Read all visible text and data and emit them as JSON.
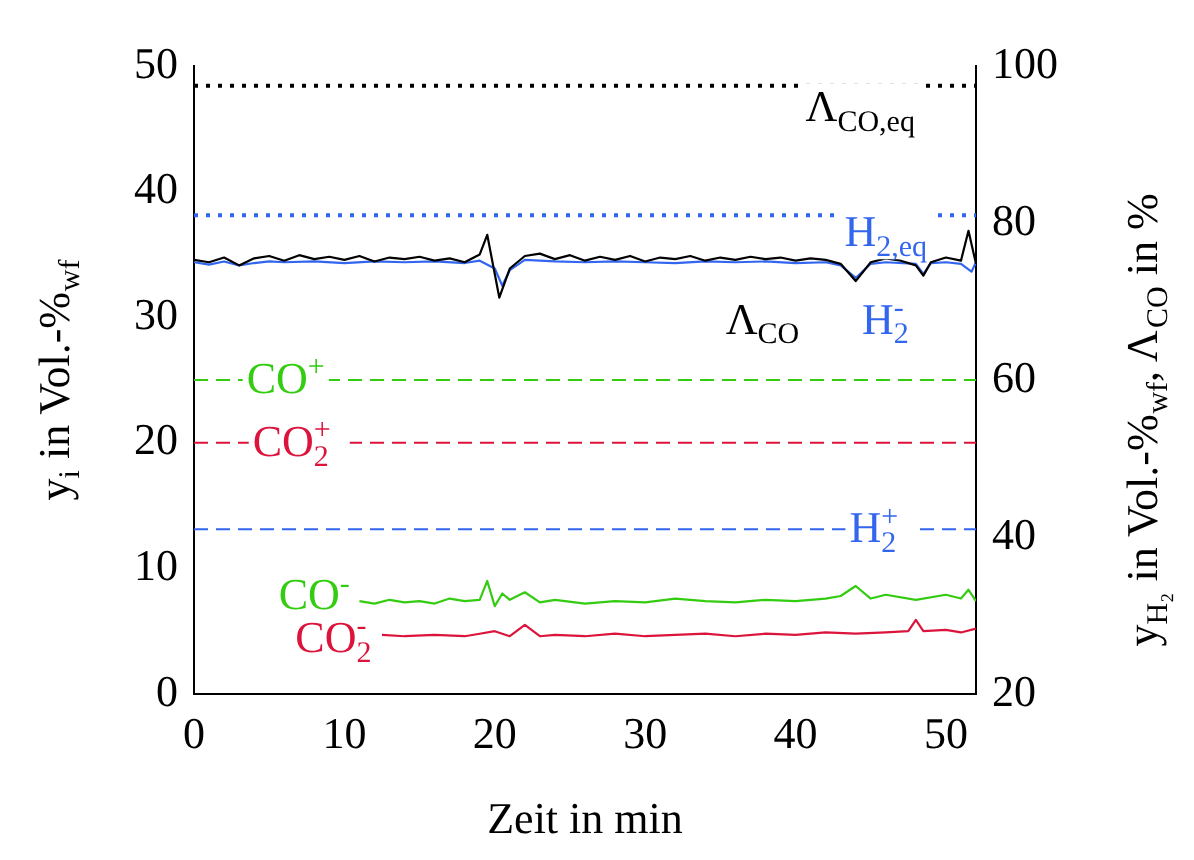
{
  "chart_data": {
    "type": "line",
    "xlabel": "Zeit in min",
    "ylabel": "y$_{i}$ in Vol.-%$_{wf}$",
    "y2label": "y$_{H₂}$ in Vol.-%$_{wf}$, Λ$_{CO}$ in %",
    "xlim": [
      0,
      52
    ],
    "xticks": [
      0,
      10,
      20,
      30,
      40,
      50
    ],
    "ylim": [
      0,
      50
    ],
    "yticks": [
      0,
      10,
      20,
      30,
      40,
      50
    ],
    "y2lim": [
      20,
      100
    ],
    "y2ticks": [
      20,
      40,
      60,
      80,
      100
    ],
    "series": [
      {
        "name": "Λ$_{CO}$",
        "color": "#000000",
        "axis": "y2",
        "x": [
          0,
          1,
          2,
          3,
          4,
          5,
          6,
          7,
          8,
          9,
          10,
          11,
          12,
          13,
          14,
          15,
          16,
          17,
          18,
          19,
          19.5,
          20,
          20.3,
          21,
          22,
          23,
          24,
          25,
          26,
          27,
          28,
          29,
          30,
          31,
          32,
          33,
          34,
          35,
          36,
          37,
          38,
          39,
          40,
          41,
          42,
          43,
          44,
          45,
          46,
          47,
          48,
          48.5,
          49,
          50,
          51,
          51.5,
          52
        ],
        "values": [
          75.3,
          75.0,
          75.6,
          74.6,
          75.5,
          75.8,
          75.2,
          75.9,
          75.4,
          75.7,
          75.3,
          75.8,
          75.1,
          75.6,
          75.4,
          75.7,
          75.2,
          75.5,
          75.0,
          76.0,
          78.5,
          73.5,
          70.5,
          74.2,
          75.8,
          76.1,
          75.4,
          75.9,
          75.2,
          75.7,
          75.3,
          75.8,
          75.1,
          75.6,
          75.4,
          75.8,
          75.2,
          75.6,
          75.3,
          75.7,
          75.4,
          75.6,
          75.2,
          75.5,
          75.3,
          74.8,
          72.6,
          75.0,
          75.5,
          75.2,
          74.6,
          73.3,
          75.0,
          75.6,
          75.2,
          79.0,
          74.8
        ]
      },
      {
        "name": "H$_{2}$$^{-}$",
        "color": "#3366ee",
        "axis": "y2",
        "x": [
          0,
          1,
          2,
          3,
          4,
          5,
          6,
          8,
          10,
          12,
          14,
          16,
          18,
          19,
          20,
          20.5,
          21,
          22,
          24,
          26,
          28,
          30,
          32,
          34,
          36,
          38,
          40,
          42,
          43,
          44,
          45,
          46,
          48,
          48.5,
          49,
          50,
          51,
          51.7,
          52
        ],
        "values": [
          75.0,
          74.7,
          75.1,
          74.6,
          74.9,
          75.1,
          75.0,
          75.1,
          74.9,
          75.1,
          75.0,
          75.1,
          74.9,
          75.2,
          74.2,
          72.0,
          74.0,
          75.3,
          75.1,
          75.0,
          75.1,
          75.0,
          74.9,
          75.1,
          75.0,
          75.1,
          74.9,
          75.0,
          74.6,
          73.0,
          74.8,
          75.0,
          74.8,
          73.5,
          74.9,
          75.0,
          74.8,
          73.8,
          75.0
        ]
      },
      {
        "name": "CO$^{-}$",
        "color": "#33cc11",
        "axis": "y",
        "x": [
          11,
          12,
          13,
          14,
          15,
          16,
          17,
          18,
          19,
          19.5,
          20,
          20.5,
          21,
          22,
          23,
          24,
          26,
          28,
          30,
          32,
          34,
          36,
          38,
          40,
          42,
          43,
          44,
          45,
          46,
          48,
          50,
          51,
          51.5,
          52
        ],
        "values": [
          7.4,
          7.2,
          7.5,
          7.3,
          7.4,
          7.2,
          7.6,
          7.4,
          7.5,
          9.0,
          7.0,
          8.0,
          7.5,
          8.1,
          7.3,
          7.5,
          7.2,
          7.4,
          7.3,
          7.6,
          7.4,
          7.3,
          7.5,
          7.4,
          7.6,
          7.8,
          8.6,
          7.6,
          7.9,
          7.5,
          7.9,
          7.6,
          8.3,
          7.4
        ]
      },
      {
        "name": "CO$_{2}$$^{-}$",
        "color": "#dc143c",
        "axis": "y",
        "x": [
          12.5,
          14,
          16,
          18,
          19,
          20,
          21,
          22,
          23,
          24,
          26,
          28,
          30,
          32,
          34,
          36,
          38,
          40,
          42,
          44,
          46,
          47.5,
          48,
          48.5,
          50,
          51,
          52
        ],
        "values": [
          4.7,
          4.6,
          4.7,
          4.6,
          4.8,
          5.0,
          4.6,
          5.5,
          4.6,
          4.7,
          4.6,
          4.8,
          4.6,
          4.7,
          4.8,
          4.6,
          4.8,
          4.7,
          4.9,
          4.8,
          4.9,
          5.0,
          5.9,
          5.0,
          5.1,
          4.9,
          5.2
        ]
      }
    ],
    "ref_lines": [
      {
        "axis": "y2",
        "value": 97.5,
        "label": "Λ$_{CO,eq}$",
        "color": "#000000",
        "line_style": "dotted"
      },
      {
        "axis": "y2",
        "value": 81,
        "label": "H$_{2,eq}$",
        "color": "#3366ee",
        "line_style": "dotted"
      },
      {
        "axis": "y",
        "value": 25,
        "label": "CO$^{+}$",
        "color": "#33cc11",
        "line_style": "dashed"
      },
      {
        "axis": "y",
        "value": 20,
        "label": "CO$_{2}$$^{+}$",
        "color": "#dc143c",
        "line_style": "dashed"
      },
      {
        "axis": "y2",
        "value": 41,
        "label": "H$_{2}$$^{+}$",
        "color": "#3366ee",
        "line_style": "dashed"
      }
    ]
  }
}
